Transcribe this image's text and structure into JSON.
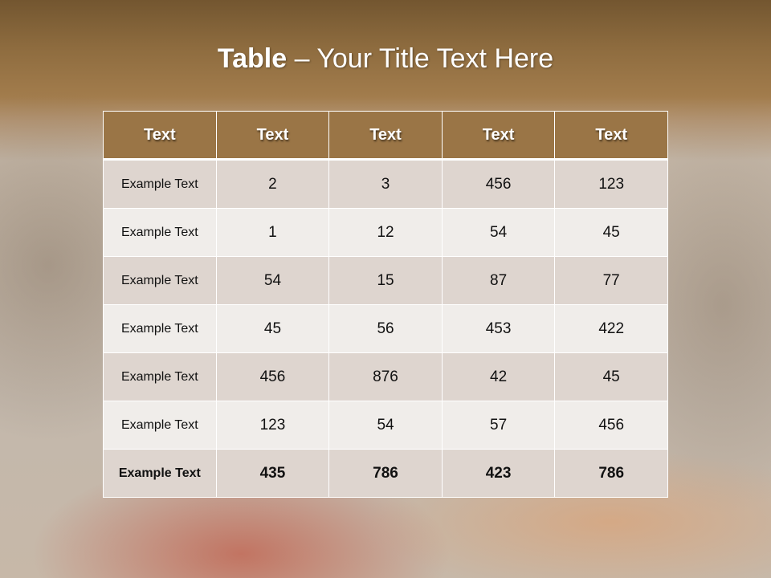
{
  "slide": {
    "title_bold": "Table",
    "title_rest": " – Your Title Text Here"
  },
  "colors": {
    "header": "#9a7546",
    "row_dark": "#ded5cf",
    "row_light": "#f0edea"
  },
  "table": {
    "headers": [
      "Text",
      "Text",
      "Text",
      "Text",
      "Text"
    ],
    "rows": [
      [
        "Example Text",
        "2",
        "3",
        "456",
        "123"
      ],
      [
        "Example Text",
        "1",
        "12",
        "54",
        "45"
      ],
      [
        "Example Text",
        "54",
        "15",
        "87",
        "77"
      ],
      [
        "Example Text",
        "45",
        "56",
        "453",
        "422"
      ],
      [
        "Example Text",
        "456",
        "876",
        "42",
        "45"
      ],
      [
        "Example Text",
        "123",
        "54",
        "57",
        "456"
      ],
      [
        "Example Text",
        "435",
        "786",
        "423",
        "786"
      ]
    ]
  }
}
